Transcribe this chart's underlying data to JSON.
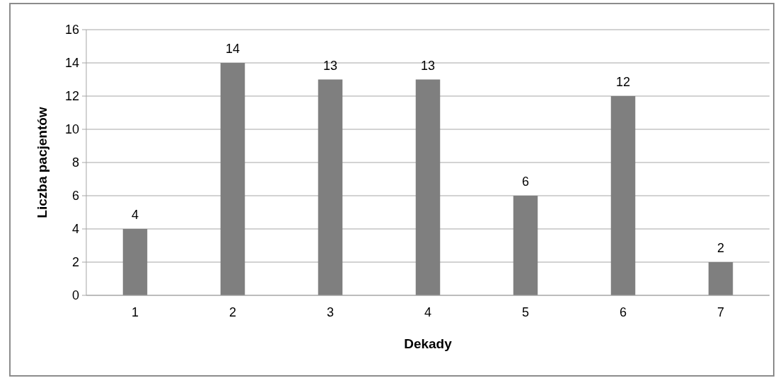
{
  "chart_data": {
    "type": "bar",
    "xlabel": "Dekady",
    "ylabel": "Liczba pacjentów",
    "categories": [
      "1",
      "2",
      "3",
      "4",
      "5",
      "6",
      "7"
    ],
    "values": [
      4,
      14,
      13,
      13,
      6,
      12,
      2
    ],
    "color": "#7f7f7f",
    "ylim": [
      0,
      16
    ],
    "yticks": [
      0,
      2,
      4,
      6,
      8,
      10,
      12,
      14,
      16
    ],
    "grid": "y",
    "data_labels": true
  }
}
